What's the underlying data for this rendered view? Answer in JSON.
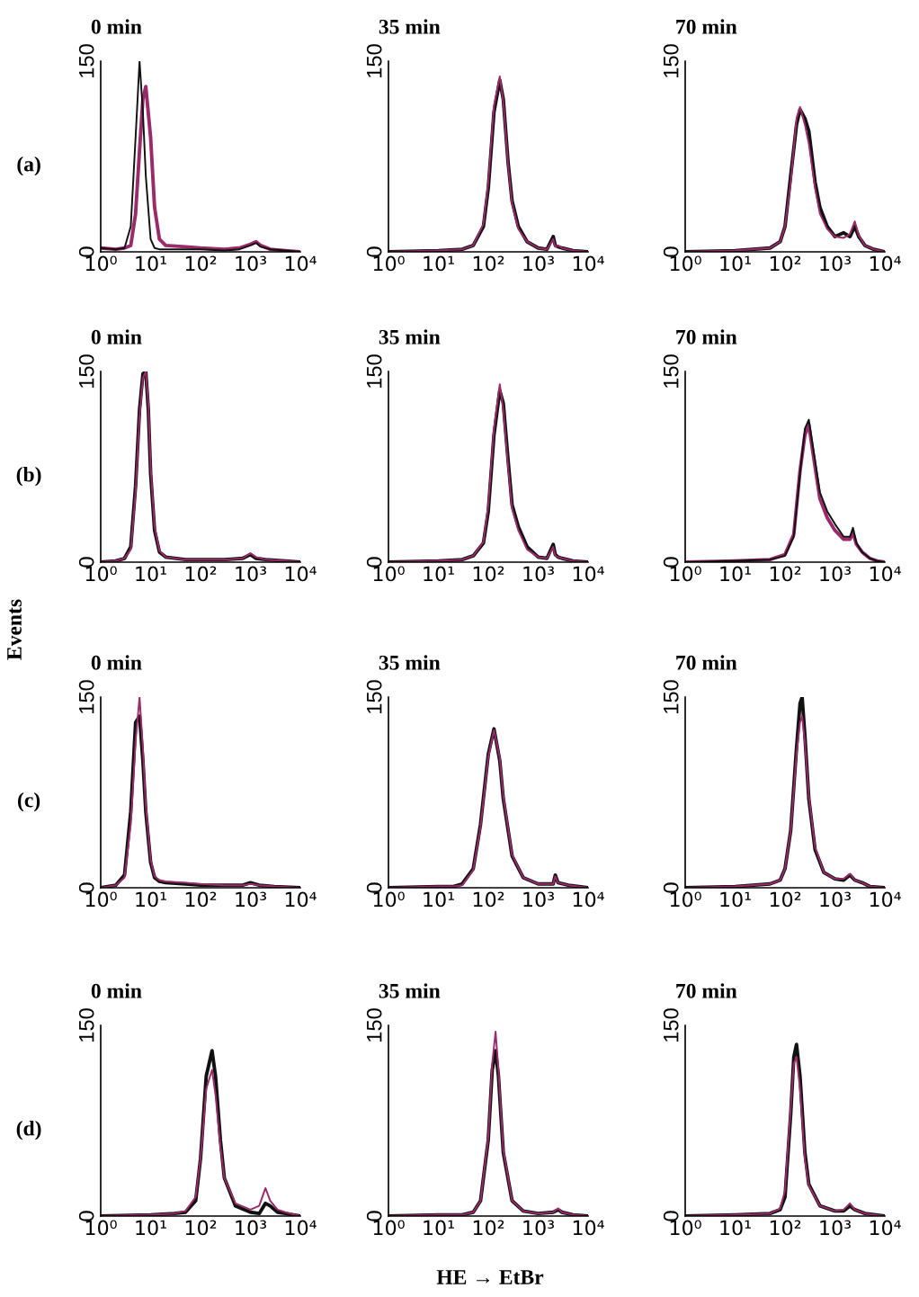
{
  "chart_data": [
    {
      "type": "line",
      "title": "0 min",
      "log": "x",
      "xlim": [
        1,
        10000
      ],
      "ylim": [
        0,
        150
      ],
      "yticks": [
        0,
        150
      ],
      "grid": false,
      "legend": false,
      "xticks": [
        {
          "value": 1,
          "label": "10⁰"
        },
        {
          "value": 10,
          "label": "10¹"
        },
        {
          "value": 100,
          "label": "10²"
        },
        {
          "value": 1000,
          "label": "10³"
        },
        {
          "value": 10000,
          "label": "10⁴"
        }
      ],
      "annotations": [
        "(a)",
        "Events"
      ],
      "x": [
        1,
        2,
        3,
        4,
        5,
        6,
        7,
        8,
        10,
        12,
        15,
        20,
        50,
        100,
        300,
        600,
        1000,
        1300,
        1600,
        2500,
        5000,
        10000
      ],
      "series": [
        {
          "color": "#9a2a6a",
          "values": [
            3,
            2,
            3,
            5,
            30,
            80,
            120,
            130,
            90,
            35,
            10,
            5,
            4,
            3,
            2,
            3,
            6,
            8,
            5,
            2,
            1,
            0
          ]
        },
        {
          "color": "#111111",
          "values": [
            3,
            2,
            3,
            20,
            90,
            150,
            110,
            60,
            10,
            3,
            2,
            2,
            2,
            2,
            1,
            2,
            5,
            7,
            4,
            2,
            1,
            0
          ]
        }
      ]
    },
    {
      "type": "line",
      "title": "35 min",
      "log": "x",
      "xlim": [
        1,
        10000
      ],
      "ylim": [
        0,
        150
      ],
      "yticks": [
        0,
        150
      ],
      "grid": false,
      "legend": false,
      "xticks": [
        {
          "value": 1,
          "label": "10⁰"
        },
        {
          "value": 10,
          "label": "10¹"
        },
        {
          "value": 100,
          "label": "10²"
        },
        {
          "value": 1000,
          "label": "10³"
        },
        {
          "value": 10000,
          "label": "10⁴"
        }
      ],
      "x": [
        1,
        10,
        30,
        50,
        80,
        100,
        130,
        170,
        200,
        250,
        300,
        400,
        600,
        1000,
        1500,
        2000,
        2200,
        2500,
        3000,
        5000,
        10000
      ],
      "series": [
        {
          "color": "#111111",
          "values": [
            0,
            1,
            2,
            5,
            20,
            50,
            110,
            135,
            120,
            70,
            40,
            20,
            8,
            3,
            2,
            12,
            5,
            4,
            3,
            1,
            0
          ]
        },
        {
          "color": "#9a2a6a",
          "values": [
            0,
            1,
            2,
            5,
            22,
            55,
            115,
            138,
            118,
            68,
            38,
            18,
            8,
            3,
            2,
            10,
            4,
            5,
            3,
            1,
            0
          ]
        }
      ]
    },
    {
      "type": "line",
      "title": "70 min",
      "log": "x",
      "xlim": [
        1,
        10000
      ],
      "ylim": [
        0,
        150
      ],
      "yticks": [
        0,
        150
      ],
      "grid": false,
      "legend": false,
      "xticks": [
        {
          "value": 1,
          "label": "10⁰"
        },
        {
          "value": 10,
          "label": "10¹"
        },
        {
          "value": 100,
          "label": "10²"
        },
        {
          "value": 1000,
          "label": "10³"
        },
        {
          "value": 10000,
          "label": "10⁴"
        }
      ],
      "x": [
        1,
        10,
        50,
        80,
        100,
        130,
        170,
        200,
        250,
        300,
        400,
        500,
        700,
        1000,
        1500,
        2000,
        2500,
        3000,
        4000,
        6000,
        10000
      ],
      "series": [
        {
          "color": "#111111",
          "values": [
            0,
            1,
            3,
            8,
            20,
            60,
            100,
            112,
            105,
            95,
            55,
            35,
            20,
            12,
            15,
            12,
            20,
            12,
            5,
            2,
            0
          ]
        },
        {
          "color": "#9a2a6a",
          "values": [
            0,
            1,
            3,
            8,
            20,
            55,
            105,
            114,
            100,
            85,
            50,
            30,
            18,
            12,
            11,
            14,
            24,
            13,
            5,
            2,
            0
          ]
        }
      ]
    },
    {
      "type": "line",
      "title": "0 min",
      "log": "x",
      "xlim": [
        1,
        10000
      ],
      "ylim": [
        0,
        150
      ],
      "yticks": [
        0,
        150
      ],
      "grid": false,
      "legend": false,
      "xticks": [
        {
          "value": 1,
          "label": "10⁰"
        },
        {
          "value": 10,
          "label": "10¹"
        },
        {
          "value": 100,
          "label": "10²"
        },
        {
          "value": 1000,
          "label": "10³"
        },
        {
          "value": 10000,
          "label": "10⁴"
        }
      ],
      "annotations": [
        "(b)"
      ],
      "x": [
        1,
        2,
        3,
        4,
        5,
        6,
        7,
        8,
        9,
        10,
        12,
        15,
        20,
        50,
        100,
        300,
        700,
        1000,
        1300,
        2000,
        5000,
        10000
      ],
      "series": [
        {
          "color": "#111111",
          "values": [
            0,
            1,
            3,
            12,
            60,
            120,
            148,
            150,
            120,
            70,
            25,
            8,
            4,
            2,
            2,
            2,
            3,
            6,
            3,
            2,
            1,
            0
          ]
        },
        {
          "color": "#9a2a6a",
          "values": [
            0,
            1,
            3,
            10,
            55,
            115,
            145,
            150,
            125,
            75,
            28,
            9,
            4,
            2,
            2,
            2,
            3,
            7,
            4,
            2,
            1,
            0
          ]
        }
      ]
    },
    {
      "type": "line",
      "title": "35 min",
      "log": "x",
      "xlim": [
        1,
        10000
      ],
      "ylim": [
        0,
        150
      ],
      "yticks": [
        0,
        150
      ],
      "grid": false,
      "legend": false,
      "xticks": [
        {
          "value": 1,
          "label": "10⁰"
        },
        {
          "value": 10,
          "label": "10¹"
        },
        {
          "value": 100,
          "label": "10²"
        },
        {
          "value": 1000,
          "label": "10³"
        },
        {
          "value": 10000,
          "label": "10⁴"
        }
      ],
      "x": [
        1,
        10,
        30,
        50,
        80,
        100,
        130,
        170,
        200,
        250,
        300,
        400,
        600,
        1000,
        1500,
        2000,
        2200,
        2500,
        3000,
        5000,
        10000
      ],
      "series": [
        {
          "color": "#111111",
          "values": [
            0,
            1,
            2,
            5,
            15,
            40,
            100,
            135,
            125,
            80,
            45,
            28,
            12,
            4,
            3,
            14,
            6,
            4,
            3,
            1,
            0
          ]
        },
        {
          "color": "#9a2a6a",
          "values": [
            0,
            1,
            2,
            5,
            16,
            45,
            105,
            140,
            120,
            75,
            42,
            25,
            10,
            4,
            3,
            12,
            5,
            4,
            3,
            1,
            0
          ]
        }
      ]
    },
    {
      "type": "line",
      "title": "70 min",
      "log": "x",
      "xlim": [
        1,
        10000
      ],
      "ylim": [
        0,
        150
      ],
      "yticks": [
        0,
        150
      ],
      "grid": false,
      "legend": false,
      "xticks": [
        {
          "value": 1,
          "label": "10⁰"
        },
        {
          "value": 10,
          "label": "10¹"
        },
        {
          "value": 100,
          "label": "10²"
        },
        {
          "value": 1000,
          "label": "10³"
        },
        {
          "value": 10000,
          "label": "10⁴"
        }
      ],
      "x": [
        1,
        10,
        50,
        100,
        150,
        200,
        250,
        300,
        400,
        500,
        700,
        1000,
        1500,
        2000,
        2300,
        2700,
        3500,
        5000,
        7000,
        10000
      ],
      "series": [
        {
          "color": "#9a2a6a",
          "values": [
            0,
            1,
            2,
            6,
            22,
            72,
            100,
            108,
            75,
            50,
            35,
            25,
            18,
            18,
            23,
            14,
            8,
            3,
            1,
            0
          ]
        },
        {
          "color": "#111111",
          "values": [
            0,
            1,
            2,
            5,
            20,
            70,
            105,
            112,
            80,
            55,
            40,
            30,
            20,
            20,
            27,
            15,
            8,
            3,
            1,
            0
          ]
        }
      ]
    },
    {
      "type": "line",
      "title": "0 min",
      "log": "x",
      "xlim": [
        1,
        10000
      ],
      "ylim": [
        0,
        150
      ],
      "yticks": [
        0,
        150
      ],
      "grid": false,
      "legend": false,
      "xticks": [
        {
          "value": 1,
          "label": "10⁰"
        },
        {
          "value": 10,
          "label": "10¹"
        },
        {
          "value": 100,
          "label": "10²"
        },
        {
          "value": 1000,
          "label": "10³"
        },
        {
          "value": 10000,
          "label": "10⁴"
        }
      ],
      "annotations": [
        "(c)"
      ],
      "x": [
        1,
        2,
        3,
        4,
        5,
        6,
        7,
        8,
        10,
        12,
        15,
        20,
        50,
        100,
        300,
        700,
        1000,
        1500,
        3000,
        10000
      ],
      "series": [
        {
          "color": "#111111",
          "values": [
            0,
            2,
            10,
            60,
            130,
            135,
            100,
            60,
            20,
            8,
            5,
            4,
            3,
            2,
            2,
            2,
            4,
            2,
            1,
            0
          ]
        },
        {
          "color": "#9a2a6a",
          "values": [
            0,
            2,
            8,
            50,
            115,
            150,
            110,
            65,
            22,
            9,
            6,
            5,
            4,
            3,
            2,
            2,
            3,
            2,
            1,
            0
          ]
        }
      ]
    },
    {
      "type": "line",
      "title": "35 min",
      "log": "x",
      "xlim": [
        1,
        10000
      ],
      "ylim": [
        0,
        150
      ],
      "yticks": [
        0,
        150
      ],
      "grid": false,
      "legend": false,
      "xticks": [
        {
          "value": 1,
          "label": "10⁰"
        },
        {
          "value": 10,
          "label": "10¹"
        },
        {
          "value": 100,
          "label": "10²"
        },
        {
          "value": 1000,
          "label": "10³"
        },
        {
          "value": 10000,
          "label": "10⁴"
        }
      ],
      "x": [
        1,
        10,
        20,
        30,
        50,
        70,
        100,
        130,
        170,
        200,
        300,
        500,
        1000,
        2000,
        2200,
        2500,
        4000,
        10000
      ],
      "series": [
        {
          "color": "#111111",
          "values": [
            0,
            1,
            1,
            3,
            15,
            50,
            105,
            125,
            100,
            70,
            25,
            8,
            3,
            3,
            10,
            4,
            2,
            0
          ]
        },
        {
          "color": "#9a2a6a",
          "values": [
            0,
            1,
            1,
            2,
            14,
            48,
            103,
            124,
            102,
            72,
            26,
            8,
            3,
            3,
            9,
            4,
            2,
            0
          ]
        }
      ]
    },
    {
      "type": "line",
      "title": "70 min",
      "log": "x",
      "xlim": [
        1,
        10000
      ],
      "ylim": [
        0,
        150
      ],
      "yticks": [
        0,
        150
      ],
      "grid": false,
      "legend": false,
      "xticks": [
        {
          "value": 1,
          "label": "10⁰"
        },
        {
          "value": 10,
          "label": "10¹"
        },
        {
          "value": 100,
          "label": "10²"
        },
        {
          "value": 1000,
          "label": "10³"
        },
        {
          "value": 10000,
          "label": "10⁴"
        }
      ],
      "x": [
        1,
        10,
        50,
        80,
        100,
        130,
        170,
        200,
        220,
        250,
        300,
        400,
        600,
        1000,
        1500,
        2000,
        2500,
        3500,
        5000,
        10000
      ],
      "series": [
        {
          "color": "#111111",
          "values": [
            0,
            1,
            3,
            6,
            15,
            45,
            110,
            145,
            150,
            120,
            70,
            30,
            12,
            7,
            6,
            10,
            6,
            4,
            1,
            0
          ]
        },
        {
          "color": "#9a2a6a",
          "values": [
            0,
            1,
            3,
            6,
            15,
            45,
            105,
            130,
            135,
            115,
            72,
            32,
            12,
            7,
            7,
            11,
            6,
            4,
            1,
            0
          ]
        }
      ]
    },
    {
      "type": "line",
      "title": "0 min",
      "log": "x",
      "xlim": [
        1,
        10000
      ],
      "ylim": [
        0,
        150
      ],
      "yticks": [
        0,
        150
      ],
      "grid": false,
      "legend": false,
      "xticks": [
        {
          "value": 1,
          "label": "10⁰"
        },
        {
          "value": 10,
          "label": "10¹"
        },
        {
          "value": 100,
          "label": "10²"
        },
        {
          "value": 1000,
          "label": "10³"
        },
        {
          "value": 10000,
          "label": "10⁴"
        }
      ],
      "annotations": [
        "(d)"
      ],
      "x": [
        1,
        10,
        30,
        50,
        80,
        100,
        130,
        170,
        200,
        250,
        300,
        500,
        1000,
        1500,
        2000,
        2500,
        3500,
        5000,
        10000
      ],
      "series": [
        {
          "color": "#111111",
          "values": [
            0,
            1,
            2,
            3,
            12,
            45,
            110,
            130,
            110,
            60,
            30,
            8,
            3,
            2,
            10,
            8,
            3,
            2,
            0
          ]
        },
        {
          "color": "#9a2a6a",
          "values": [
            0,
            1,
            2,
            4,
            15,
            45,
            100,
            115,
            95,
            55,
            30,
            10,
            5,
            8,
            22,
            12,
            5,
            3,
            0
          ]
        }
      ]
    },
    {
      "type": "line",
      "title": "35 min",
      "log": "x",
      "xlim": [
        1,
        10000
      ],
      "ylim": [
        0,
        150
      ],
      "yticks": [
        0,
        150
      ],
      "grid": false,
      "legend": false,
      "xticks": [
        {
          "value": 1,
          "label": "10⁰"
        },
        {
          "value": 10,
          "label": "10¹"
        },
        {
          "value": 100,
          "label": "10²"
        },
        {
          "value": 1000,
          "label": "10³"
        },
        {
          "value": 10000,
          "label": "10⁴"
        }
      ],
      "annotations": [
        "HE → EtBr"
      ],
      "x": [
        1,
        10,
        30,
        50,
        70,
        100,
        120,
        140,
        160,
        200,
        300,
        500,
        1000,
        2000,
        2500,
        3000,
        5000,
        10000
      ],
      "series": [
        {
          "color": "#111111",
          "values": [
            0,
            1,
            1,
            3,
            12,
            60,
            115,
            130,
            110,
            50,
            12,
            4,
            2,
            3,
            5,
            3,
            1,
            0
          ]
        },
        {
          "color": "#9a2a6a",
          "values": [
            0,
            1,
            1,
            3,
            12,
            62,
            120,
            145,
            115,
            52,
            12,
            4,
            2,
            3,
            6,
            3,
            1,
            0
          ]
        }
      ]
    },
    {
      "type": "line",
      "title": "70 min",
      "log": "x",
      "xlim": [
        1,
        10000
      ],
      "ylim": [
        0,
        150
      ],
      "yticks": [
        0,
        150
      ],
      "grid": false,
      "legend": false,
      "xticks": [
        {
          "value": 1,
          "label": "10⁰"
        },
        {
          "value": 10,
          "label": "10¹"
        },
        {
          "value": 100,
          "label": "10²"
        },
        {
          "value": 1000,
          "label": "10³"
        },
        {
          "value": 10000,
          "label": "10⁴"
        }
      ],
      "x": [
        1,
        10,
        50,
        80,
        100,
        130,
        150,
        170,
        200,
        250,
        300,
        500,
        1000,
        1500,
        2000,
        2500,
        4000,
        10000
      ],
      "series": [
        {
          "color": "#111111",
          "values": [
            0,
            1,
            2,
            5,
            15,
            80,
            125,
            135,
            110,
            50,
            25,
            8,
            4,
            4,
            8,
            5,
            2,
            0
          ]
        },
        {
          "color": "#9a2a6a",
          "values": [
            0,
            1,
            2,
            6,
            20,
            85,
            120,
            125,
            100,
            45,
            24,
            8,
            4,
            5,
            10,
            5,
            2,
            0
          ]
        }
      ]
    }
  ]
}
